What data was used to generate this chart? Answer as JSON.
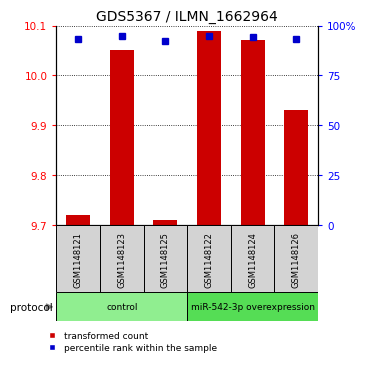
{
  "title": "GDS5367 / ILMN_1662964",
  "categories": [
    "GSM1148121",
    "GSM1148123",
    "GSM1148125",
    "GSM1148122",
    "GSM1148124",
    "GSM1148126"
  ],
  "bar_values": [
    9.72,
    10.05,
    9.71,
    10.09,
    10.07,
    9.93
  ],
  "percentile_values": [
    93,
    95,
    92,
    95,
    94,
    93
  ],
  "ylim_left": [
    9.7,
    10.1
  ],
  "ylim_right": [
    0,
    100
  ],
  "yticks_left": [
    9.7,
    9.8,
    9.9,
    10.0,
    10.1
  ],
  "yticks_right": [
    0,
    25,
    50,
    75,
    100
  ],
  "bar_color": "#cc0000",
  "marker_color": "#0000cc",
  "bar_bottom": 9.7,
  "protocol_groups": [
    {
      "label": "control",
      "start": 0,
      "end": 3,
      "color": "#90ee90"
    },
    {
      "label": "miR-542-3p overexpression",
      "start": 3,
      "end": 6,
      "color": "#55dd55"
    }
  ],
  "legend_items": [
    {
      "label": "transformed count",
      "color": "#cc0000"
    },
    {
      "label": "percentile rank within the sample",
      "color": "#0000cc"
    }
  ],
  "title_fontsize": 10,
  "tick_fontsize": 7.5,
  "background_color": "#ffffff"
}
